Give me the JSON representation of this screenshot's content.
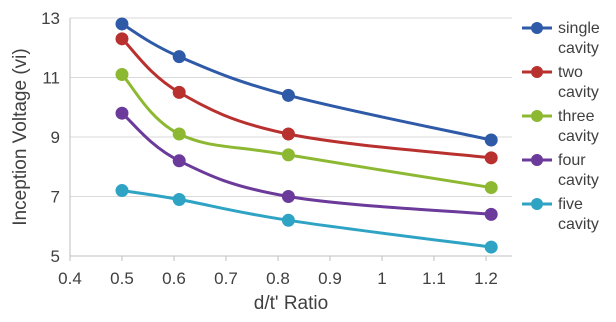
{
  "chart_data": {
    "type": "line",
    "title": "",
    "xlabel": "d/t' Ratio",
    "ylabel": "Inception Voltage (vi)",
    "xlim": [
      0.4,
      1.25
    ],
    "ylim": [
      5,
      13
    ],
    "x_ticks": [
      "0.4",
      "0.5",
      "0.6",
      "0.7",
      "0.8",
      "0.9",
      "1",
      "1.1",
      "1.2"
    ],
    "y_ticks": [
      "5",
      "7",
      "9",
      "11",
      "13"
    ],
    "grid": "horizontal",
    "legend_position": "right",
    "series": [
      {
        "name": [
          "single",
          "cavity"
        ],
        "color": "#2E5AA8",
        "x": [
          0.5,
          0.61,
          0.82,
          1.21
        ],
        "y": [
          12.8,
          11.7,
          10.4,
          8.9
        ]
      },
      {
        "name": [
          "two",
          "cavity"
        ],
        "color": "#B8312F",
        "x": [
          0.5,
          0.61,
          0.82,
          1.21
        ],
        "y": [
          12.3,
          10.5,
          9.1,
          8.3
        ]
      },
      {
        "name": [
          "three",
          "cavity"
        ],
        "color": "#8DB832",
        "x": [
          0.5,
          0.61,
          0.82,
          1.21
        ],
        "y": [
          11.1,
          9.1,
          8.4,
          7.3
        ]
      },
      {
        "name": [
          "four",
          "cavity"
        ],
        "color": "#6B3A9A",
        "x": [
          0.5,
          0.61,
          0.82,
          1.21
        ],
        "y": [
          9.8,
          8.2,
          7.0,
          6.4
        ]
      },
      {
        "name": [
          "five",
          "cavity"
        ],
        "color": "#2EA3C4",
        "x": [
          0.5,
          0.61,
          0.82,
          1.21
        ],
        "y": [
          7.2,
          6.9,
          6.2,
          5.3
        ]
      }
    ]
  }
}
